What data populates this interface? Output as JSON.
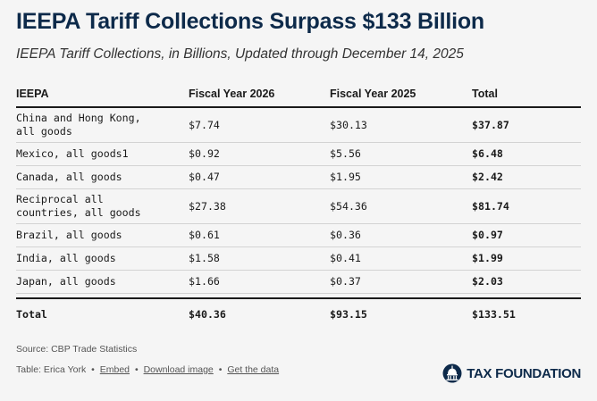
{
  "title": "IEEPA Tariff Collections Surpass $133 Billion",
  "subtitle": "IEEPA Tariff Collections, in Billions, Updated through December 14, 2025",
  "table": {
    "headers": [
      "IEEPA",
      "Fiscal Year 2026",
      "Fiscal Year 2025",
      "Total"
    ],
    "rows": [
      {
        "label_line1": "China and Hong Kong,",
        "label_line2": "all goods",
        "fy2026": "$7.74",
        "fy2025": "$30.13",
        "total": "$37.87"
      },
      {
        "label_line1": "Mexico, all goods1",
        "label_line2": "",
        "fy2026": "$0.92",
        "fy2025": "$5.56",
        "total": "$6.48"
      },
      {
        "label_line1": "Canada, all goods",
        "label_line2": "",
        "fy2026": "$0.47",
        "fy2025": "$1.95",
        "total": "$2.42"
      },
      {
        "label_line1": "Reciprocal all",
        "label_line2": "countries, all goods",
        "fy2026": "$27.38",
        "fy2025": "$54.36",
        "total": "$81.74"
      },
      {
        "label_line1": "Brazil, all goods",
        "label_line2": "",
        "fy2026": "$0.61",
        "fy2025": "$0.36",
        "total": "$0.97"
      },
      {
        "label_line1": "India, all goods",
        "label_line2": "",
        "fy2026": "$1.58",
        "fy2025": "$0.41",
        "total": "$1.99"
      },
      {
        "label_line1": "Japan, all goods",
        "label_line2": "",
        "fy2026": "$1.66",
        "fy2025": "$0.37",
        "total": "$2.03"
      }
    ],
    "total_row": {
      "label": "Total",
      "fy2026": "$40.36",
      "fy2025": "$93.15",
      "total": "$133.51"
    }
  },
  "source": "Source: CBP Trade Statistics",
  "credit": {
    "author": "Table: Erica York",
    "embed": "Embed",
    "download": "Download image",
    "get_data": "Get the data",
    "separator": "•"
  },
  "logo": {
    "text": "TAX FOUNDATION",
    "icon": "capitol-dome-icon",
    "color": "#0d2a4a"
  }
}
